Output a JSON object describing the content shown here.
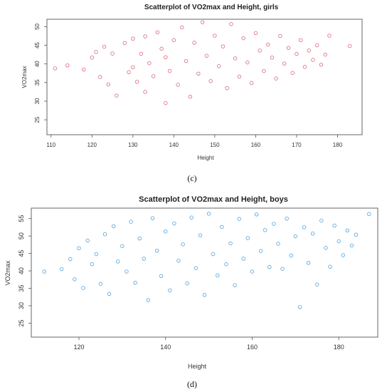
{
  "colors": {
    "girls_points": "#d24a5d",
    "boys_points": "#2f8fd8",
    "axis": "#333333",
    "frame": "#666666",
    "background": "#ffffff"
  },
  "chart_data": [
    {
      "id": "girls",
      "type": "scatter",
      "title": "Scatterplot of VO2max and Height, girls",
      "xlabel": "Height",
      "ylabel": "VO2max",
      "xlim": [
        109,
        186
      ],
      "ylim": [
        21,
        52
      ],
      "xticks": [
        110,
        120,
        130,
        140,
        150,
        160,
        170,
        180
      ],
      "yticks": [
        25,
        30,
        35,
        40,
        45,
        50
      ],
      "grid": false,
      "legend": "none",
      "marker": "open-circle",
      "color": "#d24a5d",
      "points": [
        [
          111,
          38.8
        ],
        [
          114,
          39.6
        ],
        [
          118,
          38.5
        ],
        [
          120,
          41.7
        ],
        [
          121,
          43.2
        ],
        [
          122,
          36.5
        ],
        [
          123,
          44.6
        ],
        [
          124,
          34.5
        ],
        [
          125,
          42.8
        ],
        [
          126,
          31.5
        ],
        [
          128,
          45.6
        ],
        [
          129,
          37.8
        ],
        [
          130,
          39.1
        ],
        [
          130,
          46.8
        ],
        [
          131,
          35.2
        ],
        [
          132,
          42.7
        ],
        [
          133,
          32.5
        ],
        [
          133,
          47.4
        ],
        [
          134,
          40.2
        ],
        [
          135,
          36.7
        ],
        [
          136,
          48.5
        ],
        [
          137,
          44.1
        ],
        [
          138,
          29.5
        ],
        [
          138,
          41.8
        ],
        [
          139,
          38.1
        ],
        [
          140,
          46.4
        ],
        [
          141,
          34.4
        ],
        [
          142,
          49.8
        ],
        [
          143,
          40.8
        ],
        [
          144,
          31.2
        ],
        [
          145,
          45.7
        ],
        [
          146,
          37.4
        ],
        [
          147,
          51.2
        ],
        [
          148,
          42.2
        ],
        [
          149,
          35.4
        ],
        [
          150,
          47.6
        ],
        [
          151,
          39.4
        ],
        [
          152,
          44.7
        ],
        [
          153,
          33.5
        ],
        [
          154,
          50.7
        ],
        [
          155,
          41.5
        ],
        [
          156,
          36.6
        ],
        [
          157,
          46.9
        ],
        [
          158,
          40.4
        ],
        [
          159,
          34.9
        ],
        [
          160,
          48.3
        ],
        [
          161,
          43.6
        ],
        [
          162,
          38.1
        ],
        [
          163,
          45.2
        ],
        [
          164,
          41.7
        ],
        [
          165,
          36.1
        ],
        [
          166,
          47.5
        ],
        [
          167,
          40.1
        ],
        [
          168,
          44.3
        ],
        [
          169,
          37.6
        ],
        [
          170,
          42.7
        ],
        [
          171,
          46.4
        ],
        [
          172,
          39.2
        ],
        [
          173,
          43.6
        ],
        [
          174,
          41.1
        ],
        [
          175,
          45.0
        ],
        [
          176,
          39.8
        ],
        [
          177,
          42.5
        ],
        [
          178,
          47.6
        ],
        [
          183,
          44.8
        ]
      ]
    },
    {
      "id": "boys",
      "type": "scatter",
      "title": "Scatterplot of VO2max and Height, boys",
      "xlabel": "Height",
      "ylabel": "VO2max",
      "xlim": [
        109,
        189
      ],
      "ylim": [
        21,
        58
      ],
      "xticks": [
        120,
        140,
        160,
        180
      ],
      "yticks": [
        25,
        30,
        35,
        40,
        45,
        50,
        55
      ],
      "grid": false,
      "legend": "none",
      "marker": "open-circle",
      "color": "#2f8fd8",
      "points": [
        [
          112,
          39.8
        ],
        [
          116,
          40.5
        ],
        [
          118,
          43.4
        ],
        [
          119,
          37.6
        ],
        [
          120,
          46.5
        ],
        [
          121,
          35.1
        ],
        [
          122,
          48.7
        ],
        [
          123,
          41.9
        ],
        [
          124,
          44.8
        ],
        [
          125,
          36.3
        ],
        [
          126,
          50.5
        ],
        [
          127,
          33.4
        ],
        [
          128,
          52.8
        ],
        [
          129,
          42.7
        ],
        [
          130,
          47.1
        ],
        [
          131,
          39.8
        ],
        [
          132,
          54.1
        ],
        [
          133,
          36.6
        ],
        [
          134,
          49.3
        ],
        [
          135,
          43.5
        ],
        [
          136,
          31.6
        ],
        [
          137,
          55.1
        ],
        [
          138,
          45.8
        ],
        [
          139,
          38.5
        ],
        [
          140,
          51.3
        ],
        [
          141,
          34.4
        ],
        [
          142,
          53.6
        ],
        [
          143,
          42.9
        ],
        [
          144,
          47.6
        ],
        [
          145,
          36.4
        ],
        [
          146,
          55.3
        ],
        [
          147,
          40.8
        ],
        [
          148,
          50.2
        ],
        [
          149,
          33.1
        ],
        [
          150,
          56.4
        ],
        [
          151,
          44.8
        ],
        [
          152,
          38.7
        ],
        [
          153,
          52.6
        ],
        [
          154,
          41.9
        ],
        [
          155,
          47.9
        ],
        [
          156,
          35.9
        ],
        [
          157,
          54.9
        ],
        [
          158,
          43.5
        ],
        [
          159,
          49.4
        ],
        [
          160,
          39.8
        ],
        [
          161,
          56.2
        ],
        [
          162,
          45.7
        ],
        [
          163,
          51.7
        ],
        [
          164,
          41.1
        ],
        [
          165,
          53.5
        ],
        [
          166,
          47.8
        ],
        [
          167,
          40.6
        ],
        [
          168,
          55.0
        ],
        [
          169,
          44.4
        ],
        [
          170,
          49.9
        ],
        [
          171,
          29.6
        ],
        [
          172,
          52.5
        ],
        [
          173,
          42.3
        ],
        [
          174,
          50.7
        ],
        [
          175,
          36.1
        ],
        [
          176,
          54.4
        ],
        [
          177,
          46.6
        ],
        [
          178,
          41.2
        ],
        [
          179,
          53.0
        ],
        [
          180,
          48.5
        ],
        [
          181,
          44.5
        ],
        [
          182,
          51.6
        ],
        [
          183,
          47.3
        ],
        [
          184,
          50.4
        ],
        [
          187,
          56.3
        ]
      ]
    }
  ],
  "captions": {
    "top": "(c)",
    "bottom": "(d)"
  }
}
